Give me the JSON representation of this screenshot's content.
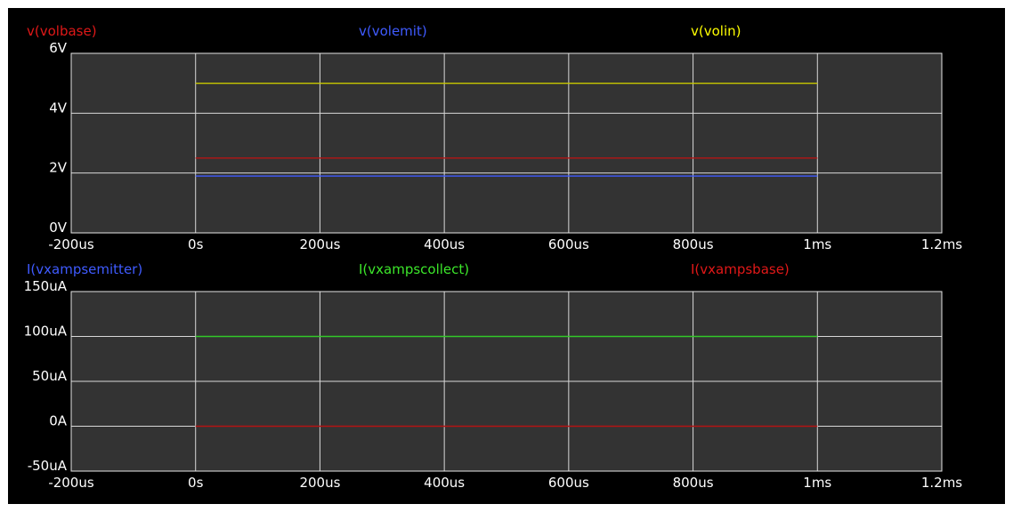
{
  "chart_data": [
    {
      "type": "line",
      "legend": [
        {
          "name": "v(volbase)",
          "color": "#e01818"
        },
        {
          "name": "v(volemit)",
          "color": "#3f5bff"
        },
        {
          "name": "v(volin)",
          "color": "#ffff00"
        }
      ],
      "x_ticks": [
        "-200us",
        "0s",
        "200us",
        "400us",
        "600us",
        "800us",
        "1ms",
        "1.2ms"
      ],
      "y_ticks": [
        "6V",
        "4V",
        "2V",
        "0V"
      ],
      "xlim": [
        -200,
        1200
      ],
      "ylim": [
        0,
        6
      ],
      "x_unit": "us",
      "grid": true,
      "series": [
        {
          "name": "v(volin)",
          "color": "#c8c800",
          "x": [
            0,
            1000
          ],
          "y": [
            5.0,
            5.0
          ]
        },
        {
          "name": "v(volbase)",
          "color": "#b41414",
          "x": [
            0,
            1000
          ],
          "y": [
            2.5,
            2.5
          ]
        },
        {
          "name": "v(volemit)",
          "color": "#3f5bff",
          "x": [
            0,
            1000
          ],
          "y": [
            1.9,
            1.9
          ]
        }
      ]
    },
    {
      "type": "line",
      "legend": [
        {
          "name": "I(vxampsemitter)",
          "color": "#3f5bff"
        },
        {
          "name": "I(vxampscollect)",
          "color": "#3ce62a"
        },
        {
          "name": "I(vxampsbase)",
          "color": "#e01818"
        }
      ],
      "x_ticks": [
        "-200us",
        "0s",
        "200us",
        "400us",
        "600us",
        "800us",
        "1ms",
        "1.2ms"
      ],
      "y_ticks": [
        "150uA",
        "100uA",
        "50uA",
        "0A",
        "-50uA"
      ],
      "xlim": [
        -200,
        1200
      ],
      "ylim": [
        -50,
        150
      ],
      "x_unit": "us",
      "grid": true,
      "series": [
        {
          "name": "I(vxampscollect)",
          "color": "#32c828",
          "x": [
            0,
            1000
          ],
          "y": [
            100,
            100
          ]
        },
        {
          "name": "I(vxampsbase)",
          "color": "#b41414",
          "x": [
            0,
            1000
          ],
          "y": [
            0,
            0
          ]
        }
      ]
    }
  ]
}
